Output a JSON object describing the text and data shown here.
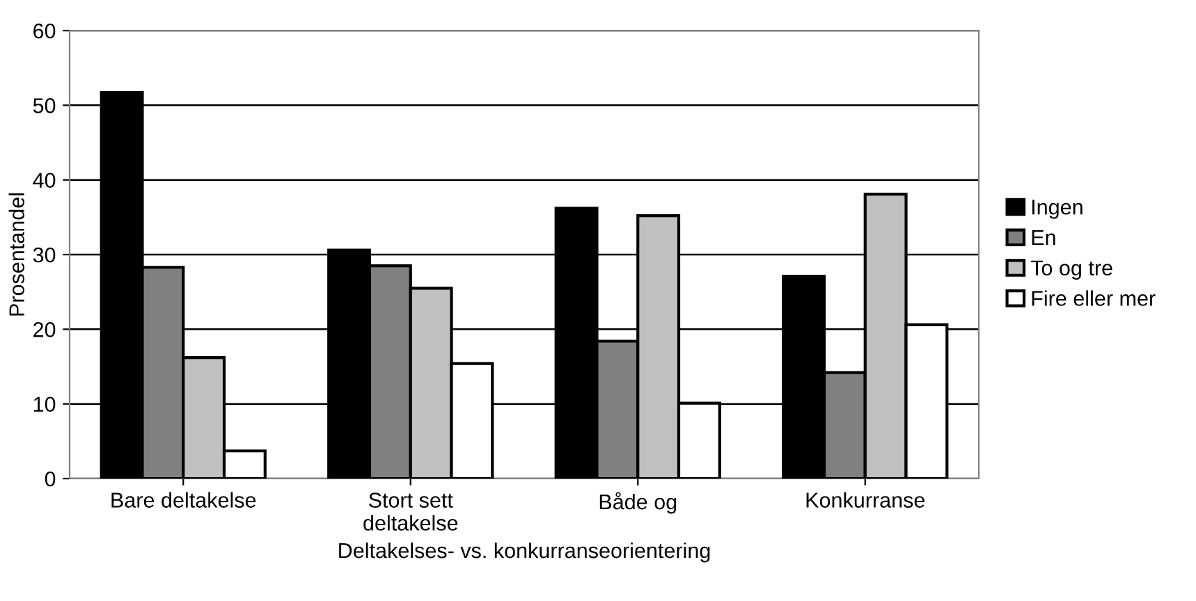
{
  "chart_data": {
    "type": "bar",
    "xlabel": "Deltakelses- vs. konkurranseorientering",
    "ylabel": "Prosentandel",
    "categories": [
      "Bare deltakelse",
      "Stort sett\ndeltakelse",
      "Både og",
      "Konkurranse"
    ],
    "series": [
      {
        "name": "Ingen",
        "color": "#000000",
        "values": [
          51.7,
          30.6,
          36.2,
          27.1
        ]
      },
      {
        "name": "En",
        "color": "#808080",
        "values": [
          28.3,
          28.5,
          18.4,
          14.2
        ]
      },
      {
        "name": "To og tre",
        "color": "#c0c0c0",
        "values": [
          16.2,
          25.5,
          35.2,
          38.1
        ]
      },
      {
        "name": "Fire eller mer",
        "color": "#ffffff",
        "values": [
          3.7,
          15.4,
          10.1,
          20.6
        ]
      }
    ],
    "ylim": [
      0,
      60
    ],
    "yticks": [
      0,
      10,
      20,
      30,
      40,
      50,
      60
    ],
    "grid": "y",
    "legend": "right"
  }
}
